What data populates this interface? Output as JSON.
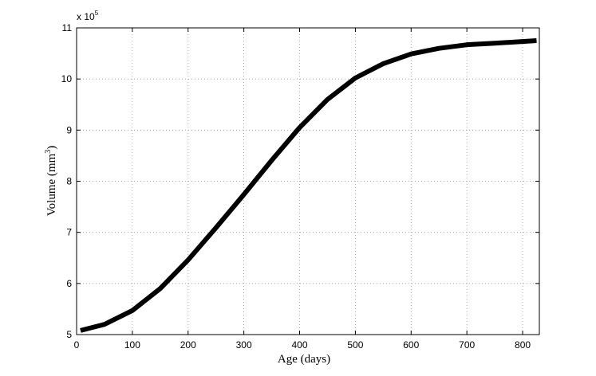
{
  "chart_data": {
    "type": "line",
    "xlabel": "Age  (days)",
    "ylabel": "Volume (mm",
    "ylabel_sup": "3",
    "ylabel_end": ")",
    "y_multiplier": "x 10",
    "y_multiplier_exp": "5",
    "x": [
      7,
      50,
      100,
      150,
      200,
      250,
      300,
      350,
      400,
      450,
      500,
      550,
      600,
      650,
      700,
      750,
      825
    ],
    "series": [
      {
        "color": "#000000",
        "values": [
          5.08,
          5.2,
          5.47,
          5.9,
          6.46,
          7.09,
          7.74,
          8.41,
          9.05,
          9.6,
          10.02,
          10.3,
          10.49,
          10.6,
          10.67,
          10.7,
          10.75
        ]
      }
    ],
    "xlim": [
      0,
      830
    ],
    "ylim": [
      5,
      11
    ],
    "xticks": [
      0,
      100,
      200,
      300,
      400,
      500,
      600,
      700,
      800
    ],
    "yticks": [
      5,
      6,
      7,
      8,
      9,
      10,
      11
    ],
    "grid": true
  }
}
